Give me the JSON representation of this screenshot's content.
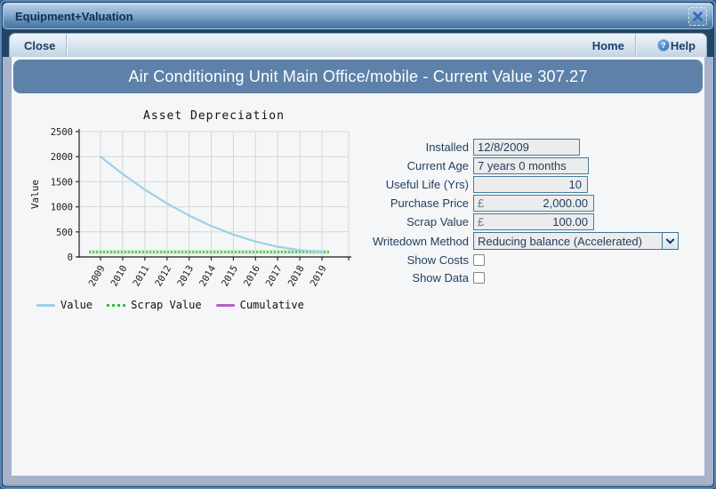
{
  "window": {
    "title": "Equipment+Valuation"
  },
  "toolbar": {
    "close_label": "Close",
    "home_label": "Home",
    "help_label": "Help",
    "help_icon_glyph": "?"
  },
  "banner": {
    "title": "Air Conditioning Unit Main Office/mobile - Current Value 307.27"
  },
  "chart_data": {
    "type": "line",
    "title": "Asset Depreciation",
    "xlabel": "",
    "ylabel": "Value",
    "categories": [
      "2009",
      "2010",
      "2011",
      "2012",
      "2013",
      "2014",
      "2015",
      "2016",
      "2017",
      "2018",
      "2019"
    ],
    "series": [
      {
        "name": "Value",
        "color": "#9cd0e6",
        "style": "solid",
        "values": [
          2000.0,
          1654.55,
          1343.64,
          1067.27,
          825.45,
          618.18,
          445.45,
          307.27,
          203.64,
          134.55,
          100.0
        ]
      },
      {
        "name": "Scrap Value",
        "color": "#3db83d",
        "style": "dotted",
        "band_color": "#cdeccd",
        "values": [
          100,
          100,
          100,
          100,
          100,
          100,
          100,
          100,
          100,
          100,
          100
        ]
      },
      {
        "name": "Cumulative",
        "color": "#b45fc4",
        "style": "solid",
        "values": null
      }
    ],
    "ylim": [
      0,
      2500
    ],
    "yticks": [
      0,
      500,
      1000,
      1500,
      2000,
      2500
    ],
    "grid": true,
    "legend_position": "bottom"
  },
  "form": {
    "fields": [
      {
        "label": "Installed",
        "value": "12/8/2009"
      },
      {
        "label": "Current Age",
        "value": "7 years 0 months"
      },
      {
        "label": "Useful Life (Yrs)",
        "value": "10"
      },
      {
        "label": "Purchase Price",
        "currency": "£",
        "value": "2,000.00"
      },
      {
        "label": "Scrap Value",
        "currency": "£",
        "value": "100.00"
      },
      {
        "label": "Writedown Method",
        "value": "Reducing balance (Accelerated)"
      },
      {
        "label": "Show Costs",
        "checked": false
      },
      {
        "label": "Show Data",
        "checked": false
      }
    ]
  },
  "colors": {
    "banner_bg": "#5d81a8",
    "titlebar_text": "#0f3052",
    "field_border": "#447d9e",
    "accent_navy": "#1e3c5c"
  }
}
